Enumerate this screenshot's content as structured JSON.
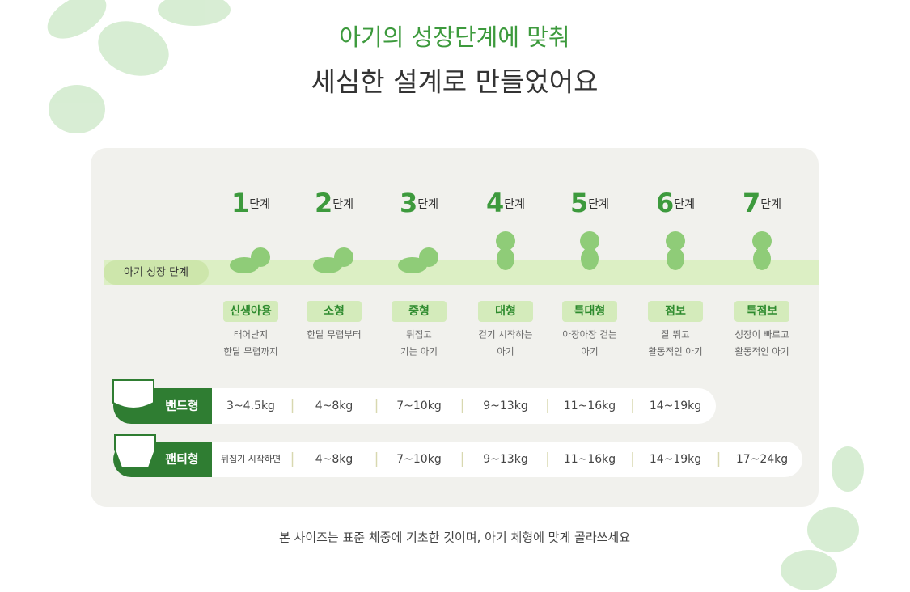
{
  "header": {
    "line1": "아기의 성장단계에 맞춰",
    "line2": "세심한 설계로 만들었어요"
  },
  "stage_label": "아기 성장 단계",
  "stages": [
    {
      "number": "1",
      "unit": "단계",
      "size": "신생아용",
      "desc": [
        "태어난지",
        "한달 무렵까지"
      ]
    },
    {
      "number": "2",
      "unit": "단계",
      "size": "소형",
      "desc": [
        "한달 무렵부터"
      ]
    },
    {
      "number": "3",
      "unit": "단계",
      "size": "중형",
      "desc": [
        "뒤집고",
        "기는 아기"
      ]
    },
    {
      "number": "4",
      "unit": "단계",
      "size": "대형",
      "desc": [
        "걷기 시작하는",
        "아기"
      ]
    },
    {
      "number": "5",
      "unit": "단계",
      "size": "특대형",
      "desc": [
        "아장아장 걷는",
        "아기"
      ]
    },
    {
      "number": "6",
      "unit": "단계",
      "size": "점보",
      "desc": [
        "잘 뛰고",
        "활동적인 아기"
      ]
    },
    {
      "number": "7",
      "unit": "단계",
      "size": "특점보",
      "desc": [
        "성장이 빠르고",
        "활동적인 아기"
      ]
    }
  ],
  "band": {
    "label": "밴드형",
    "values": [
      "3~4.5kg",
      "4~8kg",
      "7~10kg",
      "9~13kg",
      "11~16kg",
      "14~19kg"
    ]
  },
  "pants": {
    "label": "팬티형",
    "values": [
      "뒤집기 시작하면",
      "4~8kg",
      "7~10kg",
      "9~13kg",
      "11~16kg",
      "14~19kg",
      "17~24kg"
    ]
  },
  "footnote": "본 사이즈는 표준 체중에 기초한 것이며, 아기 체형에 맞게 골라쓰세요"
}
